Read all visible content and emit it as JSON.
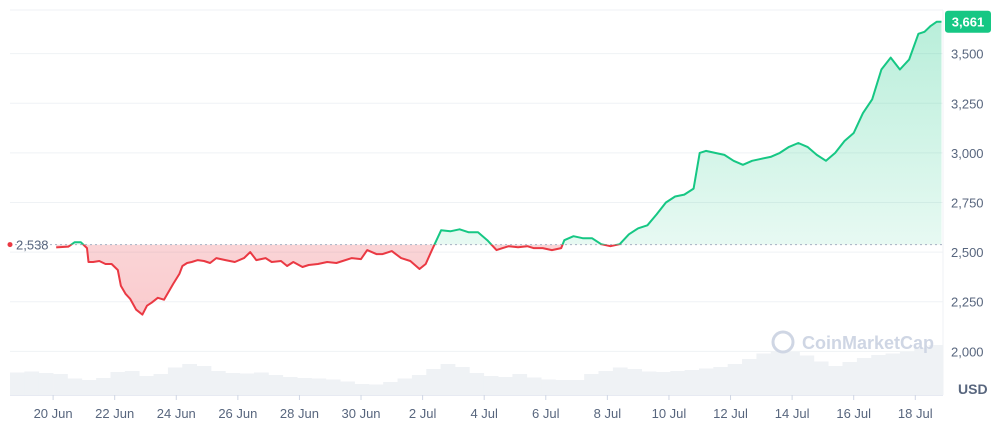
{
  "chart_data": {
    "type": "area",
    "unit_label": "USD",
    "watermark": "CoinMarketCap",
    "baseline": {
      "value": 2538,
      "label": "2,538"
    },
    "current": {
      "value": 3661,
      "label": "3,661"
    },
    "ylim": [
      1780,
      3720
    ],
    "xlim": [
      0,
      30.3
    ],
    "yticks": [
      {
        "value": 2000,
        "label": "2,000"
      },
      {
        "value": 2250,
        "label": "2,250"
      },
      {
        "value": 2500,
        "label": "2,500"
      },
      {
        "value": 2750,
        "label": "2,750"
      },
      {
        "value": 3000,
        "label": "3,000"
      },
      {
        "value": 3250,
        "label": "3,250"
      },
      {
        "value": 3500,
        "label": "3,500"
      }
    ],
    "xticks": [
      {
        "value": 1.4,
        "label": "20 Jun"
      },
      {
        "value": 3.4,
        "label": "22 Jun"
      },
      {
        "value": 5.4,
        "label": "24 Jun"
      },
      {
        "value": 7.4,
        "label": "26 Jun"
      },
      {
        "value": 9.4,
        "label": "28 Jun"
      },
      {
        "value": 11.4,
        "label": "30 Jun"
      },
      {
        "value": 13.4,
        "label": "2 Jul"
      },
      {
        "value": 15.4,
        "label": "4 Jul"
      },
      {
        "value": 17.4,
        "label": "6 Jul"
      },
      {
        "value": 19.4,
        "label": "8 Jul"
      },
      {
        "value": 21.4,
        "label": "10 Jul"
      },
      {
        "value": 23.4,
        "label": "12 Jul"
      },
      {
        "value": 25.4,
        "label": "14 Jul"
      },
      {
        "value": 27.4,
        "label": "16 Jul"
      },
      {
        "value": 29.4,
        "label": "18 Jul"
      }
    ],
    "series": [
      {
        "x": [
          1.5,
          1.9,
          2.1,
          2.3,
          2.5,
          2.55,
          2.7,
          2.9,
          3.1,
          3.3,
          3.5,
          3.6,
          3.75,
          3.9,
          4.1,
          4.3,
          4.45,
          4.6,
          4.8,
          5.0,
          5.3,
          5.5,
          5.6,
          5.75,
          5.9,
          6.1,
          6.3,
          6.5,
          6.7,
          7.0,
          7.3,
          7.6,
          7.8,
          8.0,
          8.3,
          8.5,
          8.8,
          9.0,
          9.2,
          9.5,
          9.7,
          10.0,
          10.3,
          10.6,
          10.8,
          11.1,
          11.4,
          11.6,
          11.9,
          12.1,
          12.4,
          12.7,
          13.0,
          13.3,
          13.5,
          13.7,
          14.0,
          14.3,
          14.6,
          14.9,
          15.2,
          15.5,
          15.8,
          16.0,
          16.2,
          16.5,
          16.8,
          17.0,
          17.3,
          17.6,
          17.9,
          18.0,
          18.3,
          18.6,
          18.9,
          19.2,
          19.5,
          19.8,
          20.1,
          20.4,
          20.7,
          21.0,
          21.3,
          21.6,
          21.9,
          22.2,
          22.4,
          22.6,
          22.9,
          23.2,
          23.5,
          23.8,
          24.1,
          24.4,
          24.7,
          25.0,
          25.3,
          25.6,
          25.9,
          26.2,
          26.5,
          26.8,
          27.1,
          27.4,
          27.7,
          28.0,
          28.3,
          28.6,
          28.9,
          29.2,
          29.5,
          29.7,
          29.9,
          30.1,
          30.25
        ],
        "y": [
          2524,
          2528,
          2550,
          2550,
          2520,
          2450,
          2450,
          2455,
          2440,
          2440,
          2410,
          2330,
          2290,
          2265,
          2210,
          2185,
          2230,
          2245,
          2270,
          2260,
          2340,
          2390,
          2430,
          2445,
          2450,
          2460,
          2455,
          2445,
          2470,
          2460,
          2450,
          2470,
          2500,
          2460,
          2470,
          2450,
          2455,
          2430,
          2450,
          2425,
          2435,
          2440,
          2450,
          2445,
          2455,
          2470,
          2465,
          2510,
          2490,
          2490,
          2505,
          2470,
          2455,
          2415,
          2440,
          2510,
          2610,
          2605,
          2615,
          2600,
          2600,
          2560,
          2510,
          2520,
          2530,
          2525,
          2530,
          2520,
          2520,
          2510,
          2520,
          2560,
          2580,
          2570,
          2570,
          2540,
          2530,
          2540,
          2590,
          2620,
          2635,
          2690,
          2750,
          2780,
          2790,
          2820,
          3000,
          3010,
          3000,
          2990,
          2960,
          2940,
          2960,
          2970,
          2980,
          3000,
          3030,
          3050,
          3030,
          2990,
          2960,
          3000,
          3060,
          3100,
          3200,
          3270,
          3420,
          3480,
          3420,
          3470,
          3600,
          3610,
          3640,
          3661,
          3661
        ]
      }
    ],
    "volume": [
      0.45,
      0.47,
      0.44,
      0.42,
      0.33,
      0.3,
      0.34,
      0.46,
      0.48,
      0.38,
      0.42,
      0.55,
      0.62,
      0.58,
      0.48,
      0.44,
      0.43,
      0.45,
      0.4,
      0.36,
      0.34,
      0.33,
      0.31,
      0.27,
      0.22,
      0.21,
      0.26,
      0.33,
      0.4,
      0.52,
      0.62,
      0.56,
      0.44,
      0.38,
      0.36,
      0.42,
      0.35,
      0.31,
      0.3,
      0.3,
      0.42,
      0.48,
      0.55,
      0.52,
      0.47,
      0.46,
      0.48,
      0.5,
      0.53,
      0.56,
      0.62,
      0.72,
      0.83,
      0.88,
      0.86,
      0.79,
      0.67,
      0.58,
      0.66,
      0.74,
      0.8,
      0.83,
      0.86,
      0.94,
      1.0
    ]
  }
}
